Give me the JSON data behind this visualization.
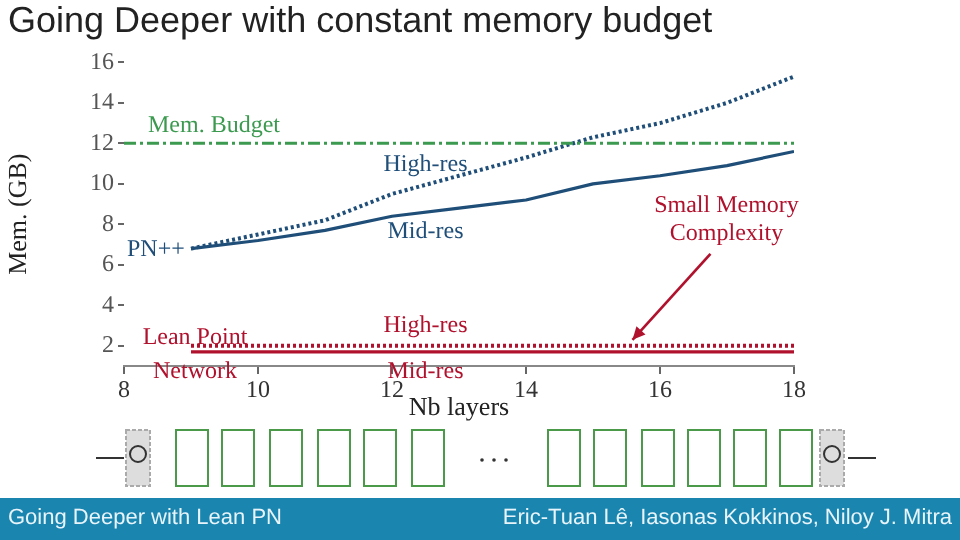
{
  "chart_data": {
    "type": "line",
    "title": "Going Deeper with constant memory budget",
    "xlabel": "Nb layers",
    "ylabel": "Mem. (GB)",
    "x": [
      9,
      10,
      11,
      12,
      13,
      14,
      15,
      16,
      17,
      18
    ],
    "series": [
      {
        "name": "High-res",
        "color": "#1f4e79",
        "line_style": "dotted",
        "values": [
          6.8,
          7.5,
          8.2,
          9.5,
          10.4,
          11.3,
          12.3,
          13.0,
          14.0,
          15.3
        ]
      },
      {
        "name": "Mid-res",
        "color": "#1f4e79",
        "line_style": "solid",
        "values": [
          6.8,
          7.2,
          7.7,
          8.4,
          8.8,
          9.2,
          10.0,
          10.4,
          10.9,
          11.6
        ]
      },
      {
        "name": "High-res",
        "color": "#b0122e",
        "line_style": "dotted",
        "values": [
          2.0,
          2.0,
          2.0,
          2.0,
          2.0,
          2.0,
          2.0,
          2.0,
          2.0,
          2.0
        ]
      },
      {
        "name": "Mid-res",
        "color": "#b0122e",
        "line_style": "solid",
        "values": [
          1.7,
          1.7,
          1.7,
          1.7,
          1.7,
          1.7,
          1.7,
          1.7,
          1.7,
          1.7
        ]
      }
    ],
    "xlim": [
      8,
      18
    ],
    "xticks": [
      8,
      10,
      12,
      14,
      16,
      18
    ],
    "ylim": [
      1,
      16
    ],
    "yticks": [
      2,
      4,
      6,
      8,
      10,
      12,
      14,
      16
    ],
    "ref_lines": [
      {
        "axis": "y",
        "value": 12,
        "label": "Mem. Budget",
        "color": "#3c9a50",
        "line_style": "dashed"
      }
    ],
    "annotations": [
      "PN++",
      "Lean Point Network",
      {
        "text": "Small Memory Complexity",
        "x": 15.5,
        "y": 2.0
      },
      "Going Deeper with Lean PN",
      "Eric-Tuan Lê, Iasonas Kokkinos, Niloy J. Mitra"
    ],
    "grid": false,
    "legend": false,
    "marker": "none"
  }
}
